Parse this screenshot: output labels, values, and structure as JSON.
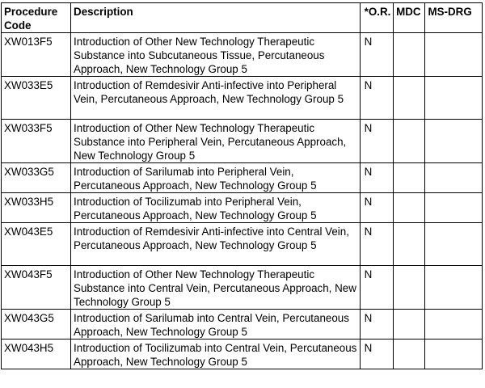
{
  "table": {
    "headers": {
      "code": "Procedure Code",
      "description": "Description",
      "or": "*O.R.",
      "mdc": "MDC",
      "ms_drg": "MS-DRG"
    },
    "rows": [
      {
        "code": "XW013F5",
        "description": "Introduction of Other New Technology Therapeutic Substance into Subcutaneous Tissue, Percutaneous Approach, New Technology Group 5",
        "or": "N",
        "mdc": "",
        "ms_drg": ""
      },
      {
        "code": "XW033E5",
        "description": "Introduction of Remdesivir Anti-infective into Peripheral Vein, Percutaneous Approach, New Technology Group 5",
        "or": "N",
        "mdc": "",
        "ms_drg": ""
      },
      {
        "code": "XW033F5",
        "description": "Introduction of Other New Technology Therapeutic Substance into Peripheral Vein, Percutaneous Approach, New Technology Group 5",
        "or": "N",
        "mdc": "",
        "ms_drg": ""
      },
      {
        "code": "XW033G5",
        "description": "Introduction of Sarilumab into Peripheral Vein, Percutaneous Approach, New Technology Group 5",
        "or": "N",
        "mdc": "",
        "ms_drg": ""
      },
      {
        "code": "XW033H5",
        "description": "Introduction of Tocilizumab into Peripheral Vein, Percutaneous Approach, New Technology Group 5",
        "or": "N",
        "mdc": "",
        "ms_drg": ""
      },
      {
        "code": "XW043E5",
        "description": "Introduction of Remdesivir Anti-infective into Central Vein, Percutaneous Approach, New Technology Group 5",
        "or": "N",
        "mdc": "",
        "ms_drg": ""
      },
      {
        "code": "XW043F5",
        "description": "Introduction of Other New Technology Therapeutic Substance into Central Vein, Percutaneous Approach, New Technology Group 5",
        "or": "N",
        "mdc": "",
        "ms_drg": ""
      },
      {
        "code": "XW043G5",
        "description": "Introduction of Sarilumab into Central Vein, Percutaneous Approach, New Technology Group 5",
        "or": "N",
        "mdc": "",
        "ms_drg": ""
      },
      {
        "code": "XW043H5",
        "description": "Introduction of Tocilizumab into Central Vein, Percutaneous Approach, New Technology Group 5",
        "or": "N",
        "mdc": "",
        "ms_drg": ""
      }
    ]
  }
}
